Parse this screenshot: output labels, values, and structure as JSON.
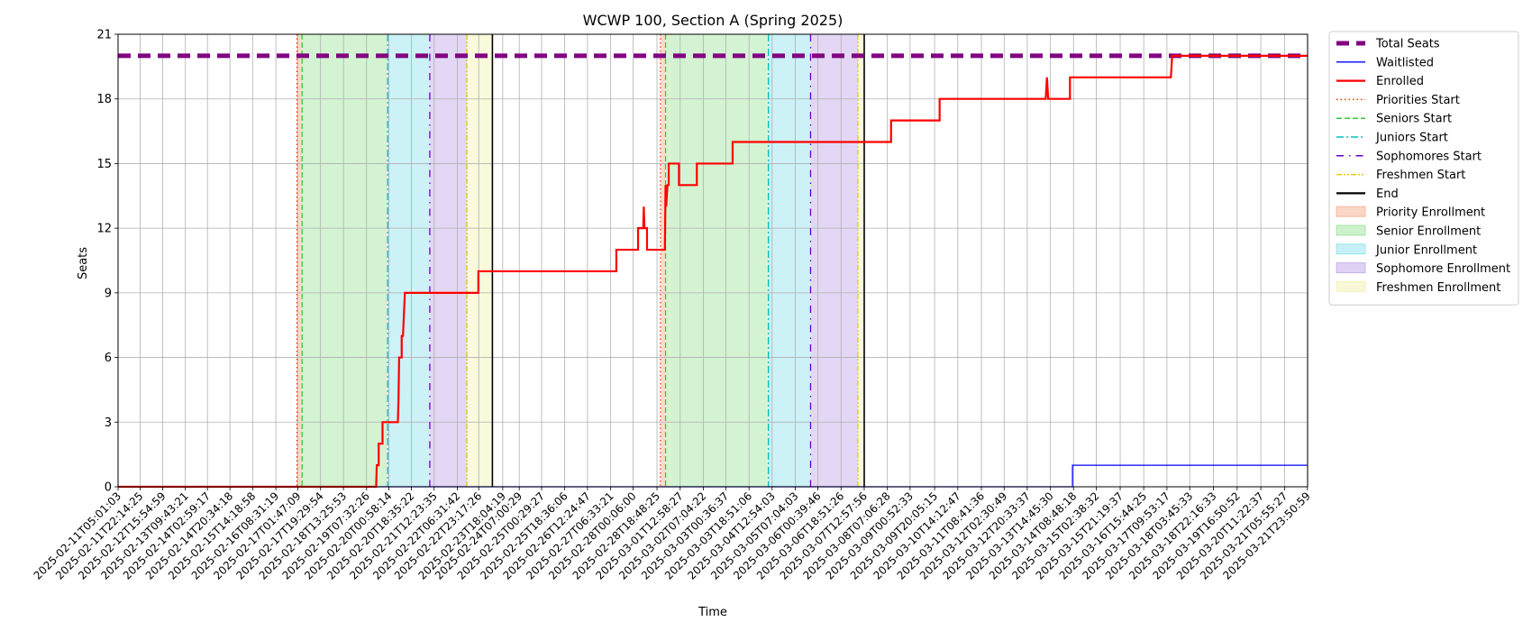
{
  "chart_data": {
    "type": "line",
    "title": "WCWP 100, Section A (Spring 2025)",
    "xlabel": "Time",
    "ylabel": "Seats",
    "ylim": [
      0,
      21
    ],
    "xlim": [
      "2025-02-11T05:01:03",
      "2025-03-22T00:00:00"
    ],
    "yticks": [
      0,
      3,
      6,
      9,
      12,
      15,
      18,
      21
    ],
    "xtick_labels": [
      "2025-02-11T05:01:03",
      "2025-02-11T22:14:25",
      "2025-02-12T15:54:59",
      "2025-02-13T09:43:21",
      "2025-02-14T02:59:17",
      "2025-02-14T20:34:18",
      "2025-02-15T14:18:58",
      "2025-02-16T08:31:19",
      "2025-02-17T01:47:09",
      "2025-02-17T19:29:54",
      "2025-02-18T13:25:53",
      "2025-02-19T07:32:26",
      "2025-02-20T00:58:14",
      "2025-02-20T18:35:22",
      "2025-02-21T12:23:35",
      "2025-02-22T06:31:42",
      "2025-02-22T23:17:26",
      "2025-02-23T18:04:19",
      "2025-02-24T07:00:29",
      "2025-02-25T00:29:27",
      "2025-02-25T18:36:06",
      "2025-02-26T12:24:47",
      "2025-02-27T06:33:21",
      "2025-02-28T00:06:00",
      "2025-02-28T18:48:25",
      "2025-03-01T12:58:27",
      "2025-03-02T07:04:22",
      "2025-03-03T00:36:37",
      "2025-03-03T18:51:06",
      "2025-03-04T12:54:03",
      "2025-03-05T07:04:03",
      "2025-03-06T00:39:46",
      "2025-03-06T18:51:26",
      "2025-03-07T12:57:56",
      "2025-03-08T07:06:28",
      "2025-03-09T00:52:33",
      "2025-03-09T20:05:15",
      "2025-03-10T14:12:47",
      "2025-03-11T08:41:36",
      "2025-03-12T02:30:49",
      "2025-03-12T20:33:37",
      "2025-03-13T14:45:30",
      "2025-03-14T08:48:18",
      "2025-03-15T02:38:32",
      "2025-03-15T21:19:37",
      "2025-03-16T15:44:25",
      "2025-03-17T09:53:17",
      "2025-03-18T03:45:33",
      "2025-03-18T22:16:33",
      "2025-03-19T16:50:52",
      "2025-03-20T11:22:37",
      "2025-03-21T05:55:27",
      "2025-03-21T23:50:59"
    ],
    "series": [
      {
        "name": "Total Seats",
        "color": "#800080",
        "style": "dashed-thick",
        "points": [
          [
            "2025-02-11T05:01:03",
            20
          ],
          [
            "2025-03-22T00:00:00",
            20
          ]
        ]
      },
      {
        "name": "Waitlisted",
        "color": "#0000ff",
        "style": "solid-thin",
        "points": [
          [
            "2025-02-11T05:01:03",
            0
          ],
          [
            "2025-03-14T08:00:00",
            0
          ],
          [
            "2025-03-14T08:00:00",
            1
          ],
          [
            "2025-03-22T00:00:00",
            1
          ]
        ]
      },
      {
        "name": "Enrolled",
        "color": "#ff0000",
        "style": "solid",
        "points": [
          [
            "2025-02-11T05:01:03",
            0
          ],
          [
            "2025-02-19T15:00:00",
            0
          ],
          [
            "2025-02-19T15:30:00",
            1
          ],
          [
            "2025-02-19T17:00:00",
            1
          ],
          [
            "2025-02-19T17:00:00",
            2
          ],
          [
            "2025-02-19T20:00:00",
            2
          ],
          [
            "2025-02-19T20:00:00",
            3
          ],
          [
            "2025-02-20T08:00:00",
            3
          ],
          [
            "2025-02-20T08:30:00",
            4
          ],
          [
            "2025-02-20T09:00:00",
            6
          ],
          [
            "2025-02-20T11:00:00",
            6
          ],
          [
            "2025-02-20T11:00:00",
            7
          ],
          [
            "2025-02-20T12:00:00",
            7
          ],
          [
            "2025-02-20T13:30:00",
            9
          ],
          [
            "2025-02-22T23:00:00",
            9
          ],
          [
            "2025-02-22T23:00:00",
            10
          ],
          [
            "2025-02-27T11:00:00",
            10
          ],
          [
            "2025-02-27T11:00:00",
            11
          ],
          [
            "2025-02-28T04:00:00",
            11
          ],
          [
            "2025-02-28T04:00:00",
            12
          ],
          [
            "2025-02-28T08:00:00",
            12
          ],
          [
            "2025-02-28T08:30:00",
            13
          ],
          [
            "2025-02-28T09:00:00",
            12
          ],
          [
            "2025-02-28T11:00:00",
            12
          ],
          [
            "2025-02-28T11:00:00",
            11
          ],
          [
            "2025-03-01T01:00:00",
            11
          ],
          [
            "2025-03-01T01:30:00",
            14
          ],
          [
            "2025-03-01T02:00:00",
            13
          ],
          [
            "2025-03-01T03:00:00",
            14
          ],
          [
            "2025-03-01T04:00:00",
            14
          ],
          [
            "2025-03-01T04:00:00",
            15
          ],
          [
            "2025-03-01T12:00:00",
            15
          ],
          [
            "2025-03-01T12:00:00",
            14
          ],
          [
            "2025-03-02T02:00:00",
            14
          ],
          [
            "2025-03-02T02:00:00",
            15
          ],
          [
            "2025-03-03T06:00:00",
            15
          ],
          [
            "2025-03-03T06:00:00",
            16
          ],
          [
            "2025-03-08T10:00:00",
            16
          ],
          [
            "2025-03-08T10:00:00",
            17
          ],
          [
            "2025-03-10T00:00:00",
            17
          ],
          [
            "2025-03-10T00:00:00",
            18
          ],
          [
            "2025-03-13T11:00:00",
            18
          ],
          [
            "2025-03-13T12:00:00",
            19
          ],
          [
            "2025-03-13T13:00:00",
            18
          ],
          [
            "2025-03-14T06:00:00",
            18
          ],
          [
            "2025-03-14T06:00:00",
            19
          ],
          [
            "2025-03-17T13:00:00",
            19
          ],
          [
            "2025-03-17T14:00:00",
            20
          ],
          [
            "2025-03-22T00:00:00",
            20
          ]
        ]
      }
    ],
    "vlines": [
      {
        "name": "Priorities Start",
        "color": "#ff3300",
        "dash": "dotted",
        "x": [
          "2025-02-17T01:00:00",
          "2025-02-28T21:30:00"
        ]
      },
      {
        "name": "Seniors Start",
        "color": "#33cc33",
        "dash": "dashed",
        "x": [
          "2025-02-17T05:00:00",
          "2025-03-01T01:30:00"
        ]
      },
      {
        "name": "Juniors Start",
        "color": "#00bfbf",
        "dash": "dashdot",
        "x": [
          "2025-02-20T00:00:00",
          "2025-03-04T10:00:00"
        ]
      },
      {
        "name": "Sophomores Start",
        "color": "#6600cc",
        "dash": "loosedashdot",
        "x": [
          "2025-02-21T09:00:00",
          "2025-03-05T19:00:00"
        ]
      },
      {
        "name": "Freshmen Start",
        "color": "#e6c800",
        "dash": "dashdotdot",
        "x": [
          "2025-02-22T14:00:00",
          "2025-03-07T08:00:00"
        ]
      },
      {
        "name": "End",
        "color": "#000000",
        "dash": "solid",
        "x": [
          "2025-02-23T10:00:00",
          "2025-03-07T13:00:00"
        ]
      }
    ],
    "spans": [
      {
        "name": "Priority Enrollment",
        "color": "#f4a582",
        "ranges": [
          [
            "2025-02-17T01:00:00",
            "2025-02-17T05:00:00"
          ],
          [
            "2025-02-28T21:30:00",
            "2025-03-01T01:30:00"
          ]
        ]
      },
      {
        "name": "Senior Enrollment",
        "color": "#90e090",
        "ranges": [
          [
            "2025-02-17T05:00:00",
            "2025-02-20T00:00:00"
          ],
          [
            "2025-03-01T01:30:00",
            "2025-03-04T10:00:00"
          ]
        ]
      },
      {
        "name": "Junior Enrollment",
        "color": "#80dde8",
        "ranges": [
          [
            "2025-02-20T00:00:00",
            "2025-02-21T09:00:00"
          ],
          [
            "2025-03-04T10:00:00",
            "2025-03-05T19:00:00"
          ]
        ]
      },
      {
        "name": "Sophomore Enrollment",
        "color": "#b89ae6",
        "ranges": [
          [
            "2025-02-21T09:00:00",
            "2025-02-22T14:00:00"
          ],
          [
            "2025-03-05T19:00:00",
            "2025-03-07T08:00:00"
          ]
        ]
      },
      {
        "name": "Freshmen Enrollment",
        "color": "#f0f0a8",
        "ranges": [
          [
            "2025-02-22T14:00:00",
            "2025-02-23T10:00:00"
          ],
          [
            "2025-03-07T08:00:00",
            "2025-03-07T13:00:00"
          ]
        ]
      }
    ],
    "legend": {
      "placement": "outside-right-top",
      "entries": [
        {
          "label": "Total Seats",
          "kind": "line",
          "color": "#800080",
          "dash": "dashed-thick"
        },
        {
          "label": "Waitlisted",
          "kind": "line",
          "color": "#0000ff",
          "dash": "solid-thin"
        },
        {
          "label": "Enrolled",
          "kind": "line",
          "color": "#ff0000",
          "dash": "solid"
        },
        {
          "label": "Priorities Start",
          "kind": "line",
          "color": "#ff3300",
          "dash": "dotted"
        },
        {
          "label": "Seniors Start",
          "kind": "line",
          "color": "#33cc33",
          "dash": "dashed"
        },
        {
          "label": "Juniors Start",
          "kind": "line",
          "color": "#00bfbf",
          "dash": "dashdot"
        },
        {
          "label": "Sophomores Start",
          "kind": "line",
          "color": "#6600cc",
          "dash": "loosedashdot"
        },
        {
          "label": "Freshmen Start",
          "kind": "line",
          "color": "#e6c800",
          "dash": "dashdotdot"
        },
        {
          "label": "End",
          "kind": "line",
          "color": "#000000",
          "dash": "solid"
        },
        {
          "label": "Priority Enrollment",
          "kind": "patch",
          "color": "#f4a582"
        },
        {
          "label": "Senior Enrollment",
          "kind": "patch",
          "color": "#90e090"
        },
        {
          "label": "Junior Enrollment",
          "kind": "patch",
          "color": "#80dde8"
        },
        {
          "label": "Sophomore Enrollment",
          "kind": "patch",
          "color": "#b89ae6"
        },
        {
          "label": "Freshmen Enrollment",
          "kind": "patch",
          "color": "#f0f0a8"
        }
      ]
    },
    "grid": true
  }
}
